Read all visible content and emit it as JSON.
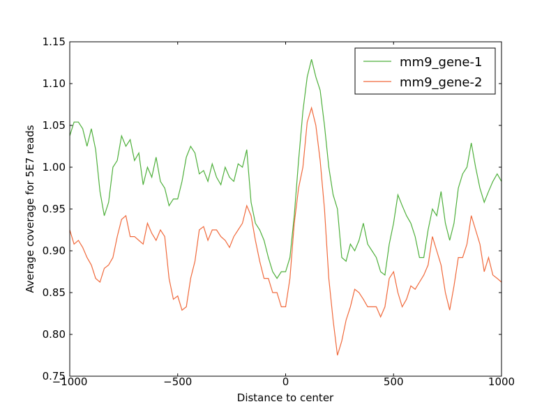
{
  "chart_data": {
    "type": "line",
    "xlabel": "Distance to center",
    "ylabel": "Average coverage for 5E7 reads",
    "x": [
      -1000,
      -980,
      -960,
      -940,
      -920,
      -900,
      -880,
      -860,
      -840,
      -820,
      -800,
      -780,
      -760,
      -740,
      -720,
      -700,
      -680,
      -660,
      -640,
      -620,
      -600,
      -580,
      -560,
      -540,
      -520,
      -500,
      -480,
      -460,
      -440,
      -420,
      -400,
      -380,
      -360,
      -340,
      -320,
      -300,
      -280,
      -260,
      -240,
      -220,
      -200,
      -180,
      -160,
      -140,
      -120,
      -100,
      -80,
      -60,
      -40,
      -20,
      0,
      20,
      40,
      60,
      80,
      100,
      120,
      140,
      160,
      180,
      200,
      220,
      240,
      260,
      280,
      300,
      320,
      340,
      360,
      380,
      400,
      420,
      440,
      460,
      480,
      500,
      520,
      540,
      560,
      580,
      600,
      620,
      640,
      660,
      680,
      700,
      720,
      740,
      760,
      780,
      800,
      820,
      840,
      860,
      880,
      900,
      920,
      940,
      960,
      980,
      1000
    ],
    "series": [
      {
        "name": "mm9_gene-1",
        "color": "#4daf3a",
        "values": [
          1.0375,
          1.054,
          1.054,
          1.046,
          1.025,
          1.046,
          1.021,
          0.971,
          0.942,
          0.958,
          1.0,
          1.008,
          1.0375,
          1.025,
          1.033,
          1.008,
          1.017,
          0.979,
          1.0,
          0.988,
          1.012,
          0.983,
          0.975,
          0.954,
          0.962,
          0.962,
          0.983,
          1.012,
          1.025,
          1.017,
          0.992,
          0.996,
          0.983,
          1.004,
          0.988,
          0.979,
          1.0,
          0.988,
          0.983,
          1.004,
          1.0,
          1.021,
          0.958,
          0.933,
          0.925,
          0.9125,
          0.892,
          0.875,
          0.867,
          0.875,
          0.875,
          0.892,
          0.942,
          1.008,
          1.067,
          1.108,
          1.129,
          1.108,
          1.092,
          1.05,
          1.0,
          0.967,
          0.95,
          0.892,
          0.8875,
          0.908,
          0.9,
          0.9125,
          0.933,
          0.908,
          0.9,
          0.892,
          0.875,
          0.871,
          0.908,
          0.933,
          0.967,
          0.954,
          0.942,
          0.933,
          0.917,
          0.892,
          0.892,
          0.925,
          0.95,
          0.942,
          0.971,
          0.933,
          0.9125,
          0.933,
          0.975,
          0.992,
          1.0,
          1.029,
          1.0,
          0.975,
          0.958,
          0.971,
          0.983,
          0.992,
          0.983
        ]
      },
      {
        "name": "mm9_gene-2",
        "color": "#f0683a",
        "values": [
          0.925,
          0.908,
          0.9125,
          0.904,
          0.892,
          0.883,
          0.867,
          0.8625,
          0.879,
          0.883,
          0.892,
          0.917,
          0.9375,
          0.942,
          0.917,
          0.917,
          0.9125,
          0.908,
          0.933,
          0.921,
          0.9125,
          0.925,
          0.917,
          0.867,
          0.842,
          0.846,
          0.829,
          0.833,
          0.867,
          0.8875,
          0.925,
          0.929,
          0.9125,
          0.925,
          0.925,
          0.917,
          0.9125,
          0.904,
          0.917,
          0.925,
          0.933,
          0.954,
          0.942,
          0.9125,
          0.8875,
          0.867,
          0.867,
          0.85,
          0.85,
          0.833,
          0.833,
          0.867,
          0.933,
          0.975,
          1.0,
          1.054,
          1.071,
          1.05,
          1.008,
          0.95,
          0.867,
          0.817,
          0.775,
          0.792,
          0.817,
          0.833,
          0.854,
          0.85,
          0.842,
          0.833,
          0.833,
          0.833,
          0.821,
          0.833,
          0.867,
          0.875,
          0.85,
          0.833,
          0.842,
          0.858,
          0.854,
          0.8625,
          0.871,
          0.883,
          0.917,
          0.9,
          0.883,
          0.85,
          0.829,
          0.858,
          0.892,
          0.892,
          0.908,
          0.942,
          0.925,
          0.908,
          0.875,
          0.892,
          0.871,
          0.867,
          0.8625
        ]
      }
    ],
    "xlim": [
      -1000,
      1000
    ],
    "xticks": [
      {
        "value": -1000,
        "label": "−1000"
      },
      {
        "value": -500,
        "label": "−500"
      },
      0,
      500,
      1000
    ],
    "ylim": [
      0.75,
      1.15
    ],
    "yticks": [
      0.75,
      {
        "value": 0.8,
        "label": "0.80"
      },
      0.85,
      {
        "value": 0.9,
        "label": "0.90"
      },
      0.95,
      {
        "value": 1.0,
        "label": "1.00"
      },
      1.05,
      {
        "value": 1.1,
        "label": "1.10"
      },
      1.15
    ],
    "legend": "upper right"
  }
}
